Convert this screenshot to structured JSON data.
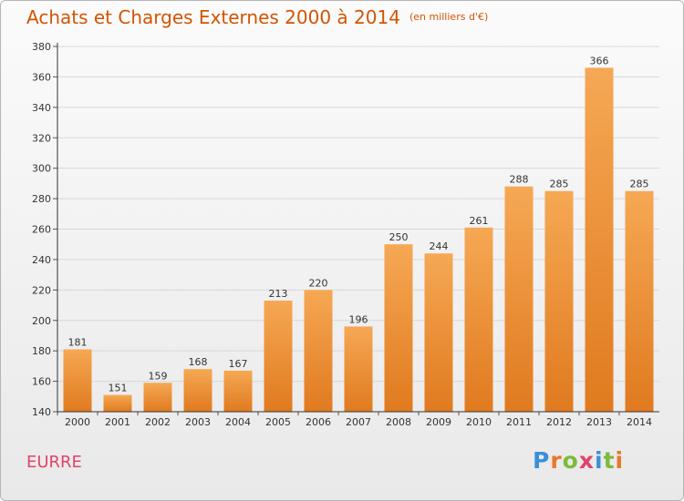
{
  "header": {
    "title": "Achats et Charges Externes 2000 à 2014",
    "unit": "(en milliers d'€)"
  },
  "footer": {
    "place": "EURRE",
    "brand": "Proxiti"
  },
  "colors": {
    "bar_light": "#f6a854",
    "bar_dark": "#e07a1f",
    "title": "#d35400",
    "place": "#e0446b",
    "brand": [
      "#3c8fd6",
      "#e8792a",
      "#7dbb3a",
      "#e0446b",
      "#3c8fd6",
      "#7dbb3a",
      "#e8792a"
    ]
  },
  "chart_data": {
    "type": "bar",
    "categories": [
      "2000",
      "2001",
      "2002",
      "2003",
      "2004",
      "2005",
      "2006",
      "2007",
      "2008",
      "2009",
      "2010",
      "2011",
      "2012",
      "2013",
      "2014"
    ],
    "values": [
      181,
      151,
      159,
      168,
      167,
      213,
      220,
      196,
      250,
      244,
      261,
      288,
      285,
      366,
      285
    ],
    "ylim": [
      140,
      380
    ],
    "yticks": [
      140,
      160,
      180,
      200,
      220,
      240,
      260,
      280,
      300,
      320,
      340,
      360,
      380
    ],
    "grid": true
  }
}
